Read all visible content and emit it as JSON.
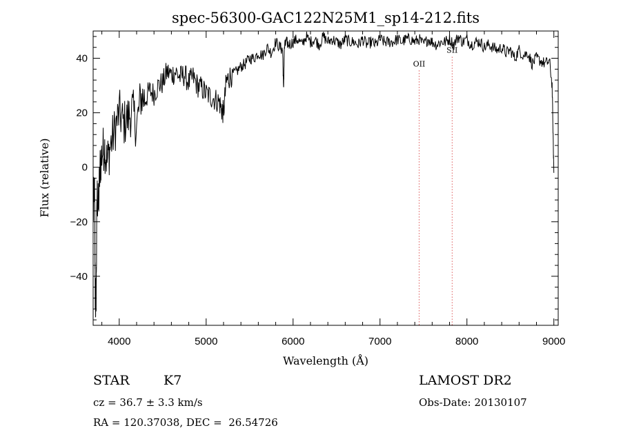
{
  "chart_data": {
    "type": "line",
    "title": "spec-56300-GAC122N25M1_sp14-212.fits",
    "xlabel": "Wavelength (Å)",
    "ylabel": "Flux (relative)",
    "xlim": [
      3700,
      9050
    ],
    "ylim": [
      -58,
      50
    ],
    "x_ticks": [
      4000,
      5000,
      6000,
      7000,
      8000,
      9000
    ],
    "y_ticks": [
      -40,
      -20,
      0,
      20,
      40
    ],
    "grid": false,
    "line_color": "#000000",
    "marker_color": "#cc0000",
    "series": [
      {
        "x": [
          3700,
          3715,
          3725,
          3735,
          3745,
          3760,
          3780,
          3800,
          3830,
          3860,
          3900,
          3950,
          4000,
          4050,
          4100,
          4150,
          4200,
          4250,
          4300,
          4350,
          4400,
          4450,
          4500,
          4550,
          4600,
          4650,
          4700,
          4750,
          4800,
          4850,
          4900,
          4950,
          5000,
          5050,
          5100,
          5150,
          5180,
          5200,
          5230,
          5260,
          5300,
          5350,
          5400,
          5450,
          5500,
          5550,
          5600,
          5650,
          5700,
          5750,
          5800,
          5850,
          5880,
          5890,
          5900,
          5920,
          5950,
          6000,
          6050,
          6100,
          6150,
          6200,
          6250,
          6300,
          6350,
          6400,
          6450,
          6500,
          6550,
          6600,
          6650,
          6700,
          6750,
          6800,
          6850,
          6900,
          6950,
          7000,
          7050,
          7100,
          7150,
          7200,
          7250,
          7300,
          7350,
          7400,
          7450,
          7500,
          7550,
          7600,
          7650,
          7700,
          7750,
          7800,
          7850,
          7900,
          7950,
          8000,
          8050,
          8100,
          8150,
          8200,
          8250,
          8300,
          8350,
          8400,
          8450,
          8500,
          8550,
          8600,
          8650,
          8700,
          8750,
          8800,
          8850,
          8900,
          8950,
          8980,
          8995,
          9000
        ],
        "y": [
          -20,
          -5,
          -52,
          -45,
          -10,
          -15,
          0,
          5,
          8,
          2,
          8,
          14,
          20,
          16,
          18,
          21,
          15,
          26,
          25,
          28,
          27,
          30,
          31,
          35,
          34,
          35,
          33,
          34,
          31,
          33,
          30,
          29,
          27,
          26,
          25,
          24,
          21,
          20,
          31,
          33,
          34,
          35,
          37,
          38,
          40,
          40,
          42,
          41,
          44,
          42,
          46,
          44,
          43,
          28,
          44,
          46,
          45,
          46,
          47,
          45,
          48,
          46,
          47,
          45,
          48,
          46,
          47,
          46,
          45,
          47,
          46,
          46,
          45,
          47,
          45,
          46,
          45,
          47,
          46,
          46,
          46,
          47,
          46,
          47,
          47,
          46,
          47,
          45,
          47,
          46,
          45,
          46,
          46,
          47,
          45,
          48,
          46,
          47,
          45,
          46,
          46,
          44,
          45,
          44,
          43,
          44,
          42,
          43,
          40,
          43,
          41,
          42,
          38,
          40,
          39,
          38,
          39,
          30,
          5,
          0
        ]
      }
    ],
    "annotations": [
      {
        "label": "OII",
        "x": 7450,
        "y_label": 37
      },
      {
        "label": "SII",
        "x": 7830,
        "y_label": 42
      }
    ]
  },
  "info": {
    "object_class": "STAR",
    "subclass": "K7",
    "survey": "LAMOST DR2",
    "velocity": "cz = 36.7 ± 3.3 km/s",
    "obs_date": "Obs-Date: 20130107",
    "coords": "RA = 120.37038, DEC =  26.54726"
  }
}
